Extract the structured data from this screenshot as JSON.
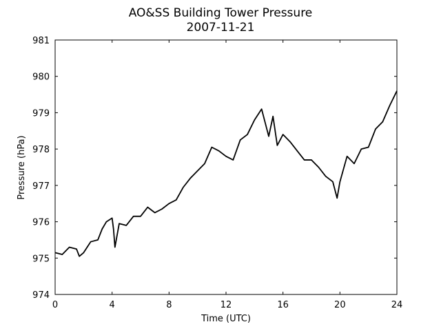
{
  "chart_data": {
    "type": "line",
    "title": "AO&SS Building Tower Pressure",
    "subtitle": "2007-11-21",
    "x_label": "Time (UTC)",
    "y_label": "Pressure (hPa)",
    "x": [
      0,
      0.5,
      1,
      1.5,
      1.7,
      2,
      2.5,
      3,
      3.3,
      3.6,
      4,
      4.1,
      4.2,
      4.5,
      5,
      5.5,
      6,
      6.5,
      7,
      7.5,
      8,
      8.5,
      9,
      9.5,
      10,
      10.5,
      11,
      11.5,
      12,
      12.5,
      13,
      13.5,
      14,
      14.5,
      15,
      15.3,
      15.6,
      16,
      16.5,
      17,
      17.5,
      18,
      18.5,
      19,
      19.5,
      19.8,
      20,
      20.5,
      21,
      21.5,
      22,
      22.5,
      23,
      23.5,
      24
    ],
    "series": [
      {
        "name": "Pressure",
        "color": "#000000",
        "values": [
          975.15,
          975.1,
          975.3,
          975.25,
          975.05,
          975.15,
          975.45,
          975.5,
          975.8,
          976.0,
          976.1,
          975.8,
          975.3,
          975.95,
          975.9,
          976.15,
          976.15,
          976.4,
          976.25,
          976.35,
          976.5,
          976.6,
          976.95,
          977.2,
          977.4,
          977.6,
          978.05,
          977.95,
          977.8,
          977.7,
          978.25,
          978.4,
          978.8,
          979.1,
          978.35,
          978.9,
          978.1,
          978.4,
          978.2,
          977.95,
          977.7,
          977.7,
          977.5,
          977.25,
          977.1,
          976.65,
          977.1,
          977.8,
          977.6,
          978.0,
          978.05,
          978.55,
          978.75,
          979.2,
          979.6
        ]
      }
    ],
    "xlim": [
      0,
      24
    ],
    "xticks": [
      0,
      4,
      8,
      12,
      16,
      20,
      24
    ],
    "ylim": [
      974,
      981
    ],
    "yticks": [
      974,
      975,
      976,
      977,
      978,
      979,
      980,
      981
    ]
  }
}
